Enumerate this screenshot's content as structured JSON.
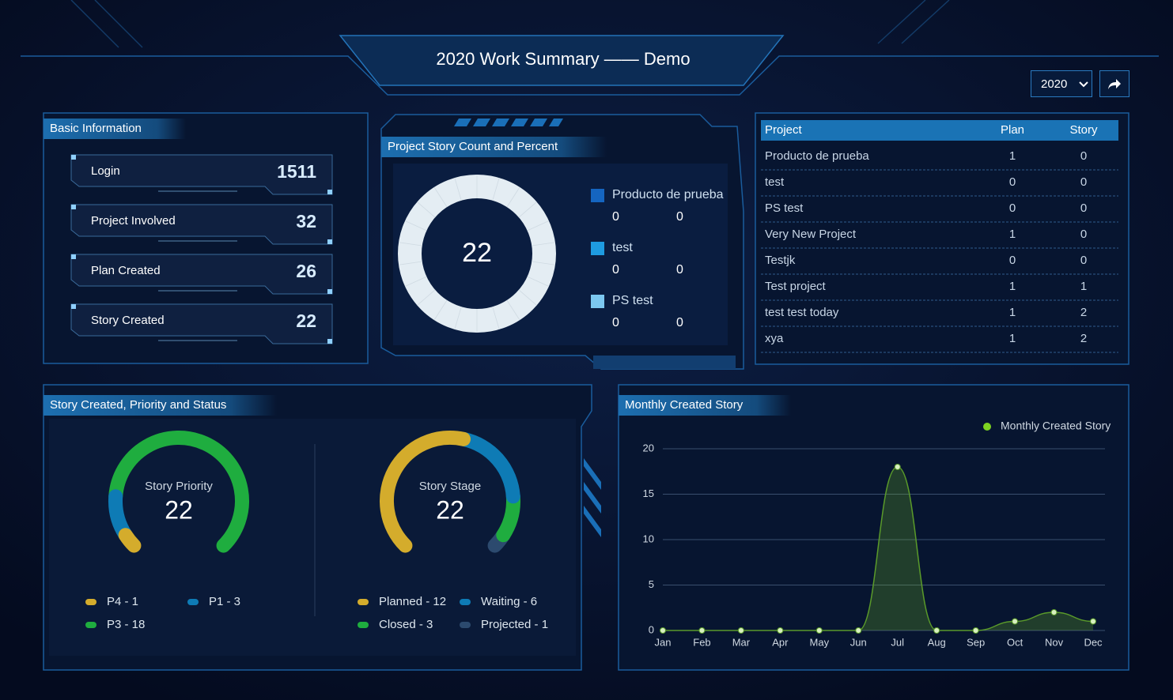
{
  "header": {
    "title": "2020 Work Summary —— Demo",
    "year": "2020"
  },
  "basic_info": {
    "title": "Basic Information",
    "items": [
      {
        "label": "Login",
        "value": 1511
      },
      {
        "label": "Project Involved",
        "value": 32
      },
      {
        "label": "Plan Created",
        "value": 26
      },
      {
        "label": "Story Created",
        "value": 22
      }
    ]
  },
  "story_count": {
    "title": "Project Story Count and Percent",
    "total": 22,
    "legend": [
      {
        "name": "Producto de prueba",
        "color": "#1565c0",
        "values": [
          0,
          0
        ]
      },
      {
        "name": "test",
        "color": "#1e9be0",
        "values": [
          0,
          0
        ]
      },
      {
        "name": "PS test",
        "color": "#7cc8f0",
        "values": [
          0,
          0
        ]
      }
    ]
  },
  "project_table": {
    "columns": [
      "Project",
      "Plan",
      "Story"
    ],
    "rows": [
      [
        "Producto de prueba",
        1,
        0
      ],
      [
        "test",
        0,
        0
      ],
      [
        "PS test",
        0,
        0
      ],
      [
        "Very New Project",
        1,
        0
      ],
      [
        "Testjk",
        0,
        0
      ],
      [
        "Test project",
        1,
        1
      ],
      [
        "test test today",
        1,
        2
      ],
      [
        "xya",
        1,
        2
      ]
    ]
  },
  "priority_status": {
    "title": "Story Created, Priority and Status",
    "gauges": [
      {
        "label": "Story Priority",
        "total": 22,
        "segments": [
          {
            "label": "P4 - 1",
            "value": 1,
            "color": "#d4ac2c"
          },
          {
            "label": "P1 - 3",
            "value": 3,
            "color": "#0e7bb5"
          },
          {
            "label": "P3 - 18",
            "value": 18,
            "color": "#1fad3f"
          }
        ]
      },
      {
        "label": "Story Stage",
        "total": 22,
        "segments": [
          {
            "label": "Planned - 12",
            "value": 12,
            "color": "#d4ac2c"
          },
          {
            "label": "Waiting - 6",
            "value": 6,
            "color": "#0e7bb5"
          },
          {
            "label": "Closed - 3",
            "value": 3,
            "color": "#1fad3f"
          },
          {
            "label": "Projected - 1",
            "value": 1,
            "color": "#2c4a6e"
          }
        ]
      }
    ]
  },
  "chart_data": {
    "type": "line",
    "title": "Monthly Created Story",
    "categories": [
      "Jan",
      "Feb",
      "Mar",
      "Apr",
      "May",
      "Jun",
      "Jul",
      "Aug",
      "Sep",
      "Oct",
      "Nov",
      "Dec"
    ],
    "series": [
      {
        "name": "Monthly Created Story",
        "color": "#7ed321",
        "values": [
          0,
          0,
          0,
          0,
          0,
          0,
          18,
          0,
          0,
          1,
          2,
          1
        ]
      }
    ],
    "ylim": [
      0,
      20
    ],
    "yticks": [
      0,
      5,
      10,
      15,
      20
    ],
    "grid": true
  }
}
